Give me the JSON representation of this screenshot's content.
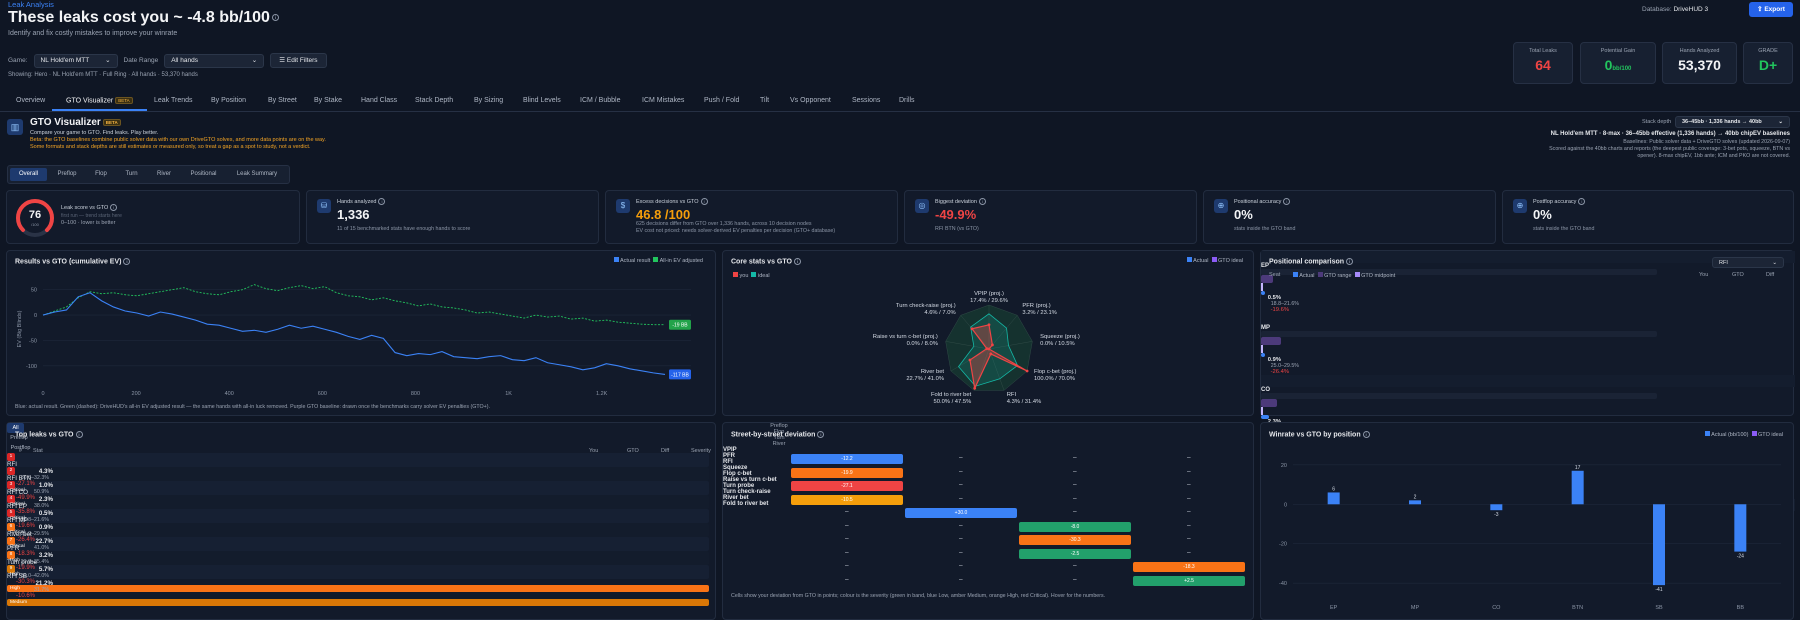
{
  "breadcrumb": "Leak Analysis",
  "title": "These leaks cost you ~ -4.8  bb/100",
  "subtitle": "Identify and fix costly mistakes to improve your winrate",
  "filters": {
    "game_label": "Game:",
    "game_value": "NL Hold'em MTT",
    "date_label": "Date Range",
    "date_value": "All hands",
    "edit_filters": "Edit Filters"
  },
  "showing": "Showing: Hero · NL Hold'em MTT · Full Ring · All hands · 53,370 hands",
  "database_label": "Database:",
  "database_value": "DriveHUD 3",
  "export_label": "Export",
  "kpis": [
    {
      "label": "Total Leaks",
      "value": "64",
      "unit": "",
      "color": "#ef4444"
    },
    {
      "label": "Potential Gain",
      "value": "0",
      "unit": "bb/100",
      "color": "#22c55e"
    },
    {
      "label": "Hands Analyzed",
      "value": "53,370",
      "unit": "",
      "color": "#f3f4f6"
    },
    {
      "label": "GRADE",
      "value": "D+",
      "unit": "",
      "color": "#22c55e"
    }
  ],
  "tabs": [
    "Overview",
    "GTO Visualizer",
    "Leak Trends",
    "By Position",
    "By Street",
    "By Stake",
    "Hand Class",
    "Stack Depth",
    "By Sizing",
    "Blind Levels",
    "ICM / Bubble",
    "ICM Mistakes",
    "Push / Fold",
    "Tilt",
    "Vs Opponent",
    "Sessions",
    "Drills"
  ],
  "beta": "BETA",
  "gto": {
    "title": "GTO Visualizer",
    "line1": "Compare your game to GTO. Find leaks. Play better.",
    "line2": "Beta: the GTO baselines combine public solver data with our own DriveGTO solves, and more data points are on the way.",
    "line3": "Some formats and stack depths are still estimates or measured only, so treat a gap as a spot to study, not a verdict."
  },
  "stack": {
    "label": "Stack depth",
    "value": "36–45bb · 1,336 hands → 40bb",
    "r1": "NL Hold'em MTT · 8-max · 36–45bb effective (1,336 hands) → 40bb chipEV baselines",
    "r2": "Baselines: Public solver data + DriveGTO solves (updated 2026-09-07)",
    "r3": "Scored against the 40bb charts and reports (the deepest public coverage: 3-bet pots, squeeze, BTN vs",
    "r4": "opener). 8-max chipEV, 1bb ante; ICM and PKO are not covered."
  },
  "subtabs": [
    "Overall",
    "Preflop",
    "Flop",
    "Turn",
    "River",
    "Positional",
    "Leak Summary"
  ],
  "score": {
    "value": "76",
    "suffix": "/100",
    "label": "Leak score vs GTO",
    "note1": "first run — trend starts here",
    "note2": "0–100 · lower is better"
  },
  "summary": [
    {
      "label": "Hands analyzed",
      "value": "1,336",
      "color": "#f3f4f6",
      "note": "11 of 15 benchmarked stats have enough hands to score",
      "note2": ""
    },
    {
      "label": "Excess decisions vs GTO",
      "value": "46.8 /100",
      "color": "#f59e0b",
      "note": "625 decisions differ from GTO over 1,336 hands, across 10 decision nodes",
      "note2": "EV cost not priced: needs solver-derived EV penalties per decision (GTO+ database)"
    },
    {
      "label": "Biggest deviation",
      "value": "-49.9%",
      "color": "#ef4444",
      "note": "RFI BTN (vs GTO)",
      "note2": ""
    },
    {
      "label": "Positional accuracy",
      "value": "0%",
      "color": "#f3f4f6",
      "note": "stats inside the GTO band",
      "note2": ""
    },
    {
      "label": "Postflop accuracy",
      "value": "0%",
      "color": "#f3f4f6",
      "note": "stats inside the GTO band",
      "note2": ""
    }
  ],
  "results": {
    "title": "Results vs GTO (cumulative EV)",
    "legend_actual": "Actual result",
    "legend_allin": "All-in EV adjusted",
    "ylabel": "EV (Big Blinds)",
    "xlabel": "Hands Played",
    "yticks": [
      "50",
      "0",
      "-50",
      "-100"
    ],
    "xticks": [
      "0",
      "200",
      "400",
      "600",
      "800",
      "1K",
      "1.2K"
    ],
    "end_green": "-19 BB",
    "end_blue": "-117 BB",
    "caption": "Blue: actual result. Green (dashed): DriveHUD's all-in EV adjusted result — the same hands with all-in luck removed. Purple GTO baseline: drawn once the benchmarks carry solver EV penalties (GTO+).",
    "blue": [
      0,
      6,
      10,
      36,
      44,
      28,
      16,
      8,
      4,
      -2,
      6,
      2,
      -4,
      -10,
      -18,
      -20,
      -26,
      -32,
      -30,
      -34,
      -28,
      -20,
      -26,
      -22,
      -28,
      -34,
      -42,
      -48,
      -40,
      -46,
      -74,
      -80,
      -76,
      -78,
      -72,
      -82,
      -84,
      -86,
      -82,
      -80,
      -88,
      -90,
      -84,
      -94,
      -98,
      -102,
      -108,
      -104,
      -96,
      -100,
      -106,
      -110,
      -114,
      -117
    ],
    "green": [
      0,
      8,
      16,
      34,
      46,
      42,
      44,
      40,
      38,
      42,
      46,
      50,
      54,
      46,
      42,
      40,
      46,
      50,
      60,
      52,
      48,
      54,
      58,
      52,
      56,
      44,
      38,
      36,
      30,
      34,
      28,
      24,
      18,
      22,
      16,
      14,
      10,
      4,
      6,
      2,
      -2,
      -6,
      0,
      -4,
      -2,
      -8,
      -6,
      -12,
      -10,
      -14,
      -16,
      -18,
      -19,
      -19
    ]
  },
  "core": {
    "title": "Core stats vs GTO",
    "legend_actual": "Actual",
    "legend_ideal": "GTO ideal",
    "legend_you": "you",
    "legend_ideal2": "ideal",
    "labels": [
      {
        "name": "VPIP (proj.)",
        "val": "17.4% / 29.6%"
      },
      {
        "name": "PFR (proj.)",
        "val": "3.2% / 23.1%"
      },
      {
        "name": "Squeeze (proj.)",
        "val": "0.0% / 10.5%"
      },
      {
        "name": "Flop c-bet (proj.)",
        "val": "100.0% / 70.0%"
      },
      {
        "name": "RFI",
        "val": "4.3% / 31.4%"
      },
      {
        "name": "Fold to river bet",
        "val": "50.0% / 47.5%"
      },
      {
        "name": "River bet",
        "val": "22.7% / 41.0%"
      },
      {
        "name": "Raise vs turn c-bet (proj.)",
        "val": "0.0% / 8.0%"
      },
      {
        "name": "Turn check-raise (proj.)",
        "val": "4.6% / 7.0%"
      }
    ],
    "you": [
      0.55,
      0.12,
      0.0,
      1.0,
      0.12,
      0.95,
      0.5,
      0.05,
      0.6
    ],
    "ideal": [
      0.8,
      0.62,
      0.45,
      0.75,
      0.72,
      0.9,
      0.8,
      0.35,
      0.65
    ]
  },
  "positional": {
    "title": "Positional comparison",
    "select": "RFI",
    "seat": "Seat",
    "leg_actual": "Actual",
    "leg_range": "GTO range",
    "leg_mid": "GTO midpoint",
    "h_you": "You",
    "h_gto": "GTO",
    "h_diff": "Diff",
    "rows": [
      {
        "seat": "EP",
        "you": "0.5%",
        "gto": "18.8–21.6%",
        "diff": "-19.6%",
        "you_frac": 0.01,
        "lo": 0.19,
        "hi": 0.22
      },
      {
        "seat": "MP",
        "you": "0.9%",
        "gto": "25.0–29.5%",
        "diff": "-26.4%",
        "you_frac": 0.01,
        "lo": 0.25,
        "hi": 0.3
      },
      {
        "seat": "CO",
        "you": "2.3%",
        "gto": "38.0%",
        "diff": "-35.8%",
        "you_frac": 0.02,
        "lo": 0.36,
        "hi": 0.4
      },
      {
        "seat": "BTN",
        "you": "1.0%",
        "gto": "50.9%",
        "diff": "-49.9%",
        "you_frac": 0.01,
        "lo": 0.49,
        "hi": 0.53
      },
      {
        "seat": "SB",
        "you": "21.2%",
        "gto": "31.7%",
        "diff": "-10.6%",
        "you_frac": 0.21,
        "lo": 0.29,
        "hi": 0.34
      }
    ]
  },
  "leaks": {
    "title": "Top leaks vs GTO",
    "filters": [
      "All",
      "Preflop",
      "Postflop"
    ],
    "h_num": "#",
    "h_stat": "Stat",
    "h_you": "You",
    "h_gto": "GTO",
    "h_diff": "Diff",
    "h_sev": "Severity",
    "rows": [
      {
        "n": "1",
        "stat": "RFI",
        "you": "4.3%",
        "gto": "30.5–32.3%",
        "diff": "-27.1%",
        "sev": "Critical"
      },
      {
        "n": "2",
        "stat": "RFI BTN",
        "you": "1.0%",
        "gto": "50.9%",
        "diff": "-49.9%",
        "sev": "Critical"
      },
      {
        "n": "3",
        "stat": "RFI CO",
        "you": "2.3%",
        "gto": "38.0%",
        "diff": "-35.8%",
        "sev": "Critical"
      },
      {
        "n": "4",
        "stat": "RFI EP",
        "you": "0.5%",
        "gto": "18.8–21.6%",
        "diff": "-19.6%",
        "sev": "Critical"
      },
      {
        "n": "5",
        "stat": "RFI MP",
        "you": "0.9%",
        "gto": "25.0–29.5%",
        "diff": "-26.4%",
        "sev": "Critical"
      },
      {
        "n": "6",
        "stat": "River bet",
        "you": "22.7%",
        "gto": "41.0%",
        "diff": "-18.3%",
        "sev": "High"
      },
      {
        "n": "7",
        "stat": "PFR",
        "you": "3.2%",
        "gto": "20.8–25.4%",
        "diff": "-19.9%",
        "sev": "High"
      },
      {
        "n": "8",
        "stat": "Turn probe",
        "you": "5.7%",
        "gto": "30.0–42.0%",
        "diff": "-30.3%",
        "sev": "High"
      },
      {
        "n": "9",
        "stat": "RFI SB",
        "you": "21.2%",
        "gto": "31.7%",
        "diff": "-10.6%",
        "sev": "Medium"
      }
    ]
  },
  "street": {
    "title": "Street-by-street deviation",
    "cols": [
      "Preflop",
      "Flop",
      "Turn",
      "River"
    ],
    "rows": [
      {
        "name": "VPIP",
        "col": 0,
        "v": "-12.2",
        "c": "#3b82f6"
      },
      {
        "name": "PFR",
        "col": 0,
        "v": "-19.9",
        "c": "#f97316"
      },
      {
        "name": "RFI",
        "col": 0,
        "v": "-27.1",
        "c": "#ef4444"
      },
      {
        "name": "Squeeze",
        "col": 0,
        "v": "-10.5",
        "c": "#f59e0b"
      },
      {
        "name": "Flop c-bet",
        "col": 1,
        "v": "+30.0",
        "c": "#3b82f6"
      },
      {
        "name": "Raise vs turn c-bet",
        "col": 2,
        "v": "-8.0",
        "c": "#22a06b"
      },
      {
        "name": "Turn probe",
        "col": 2,
        "v": "-30.3",
        "c": "#f97316"
      },
      {
        "name": "Turn check-raise",
        "col": 2,
        "v": "-2.5",
        "c": "#22a06b"
      },
      {
        "name": "River bet",
        "col": 3,
        "v": "-18.3",
        "c": "#f97316"
      },
      {
        "name": "Fold to river bet",
        "col": 3,
        "v": "+2.5",
        "c": "#22a06b"
      }
    ],
    "dash": "–",
    "caption": "Cells show your deviation from GTO in points; colour is the severity (green in band, blue Low, amber Medium, orange High, red Critical). Hover for the numbers."
  },
  "winrate": {
    "title": "Winrate vs GTO by position",
    "legend_actual": "Actual (bb/100)",
    "legend_ideal": "GTO ideal",
    "categories": [
      "EP",
      "MP",
      "CO",
      "BTN",
      "SB",
      "BB"
    ],
    "values": [
      6,
      2,
      -3,
      17,
      -41,
      -24
    ],
    "labels": [
      "6",
      "2",
      "-3",
      "17",
      "-41",
      "-24"
    ],
    "yticks": [
      "20",
      "0",
      "-20",
      "-40"
    ],
    "ylim": [
      -45,
      25
    ]
  }
}
